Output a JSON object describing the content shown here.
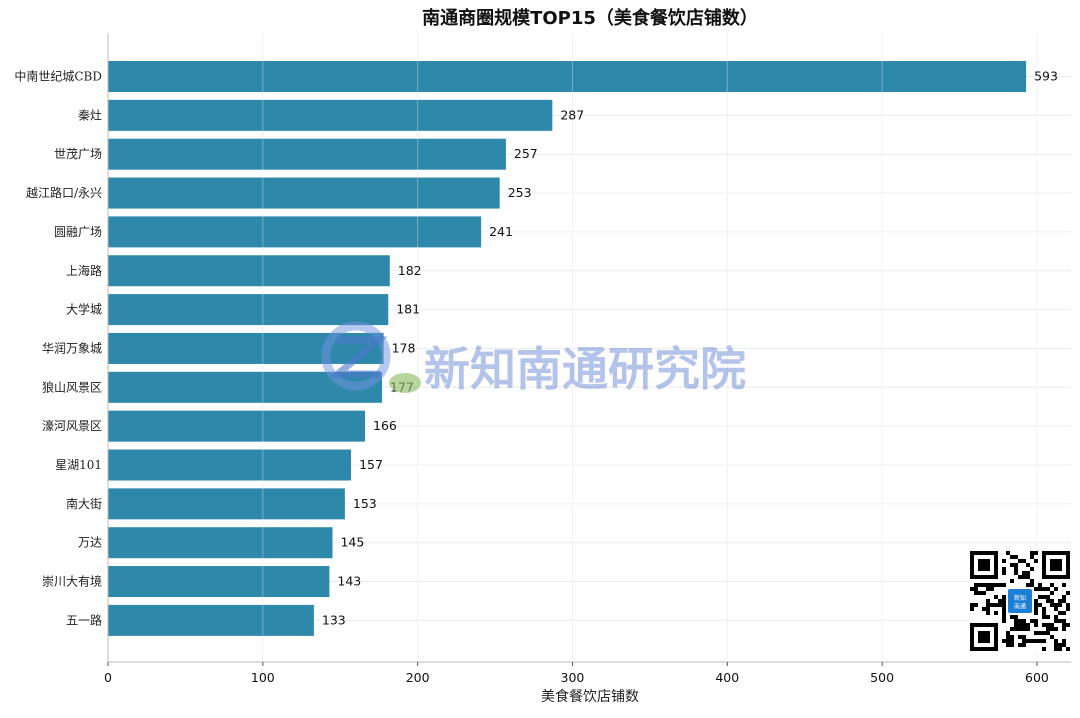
{
  "chart_data": {
    "type": "bar",
    "orientation": "horizontal",
    "title": "南通商圈规模TOP15（美食餐饮店铺数）",
    "xlabel": "美食餐饮店铺数",
    "ylabel": "",
    "xlim": [
      0,
      622
    ],
    "x_ticks": [
      0,
      100,
      200,
      300,
      400,
      500,
      600
    ],
    "grid": true,
    "bar_color": "#2e88aa",
    "categories": [
      "中南世纪城CBD",
      "秦灶",
      "世茂广场",
      "越江路口/永兴",
      "圆融广场",
      "上海路",
      "大学城",
      "华润万象城",
      "狼山风景区",
      "濠河风景区",
      "星湖101",
      "南大街",
      "万达",
      "崇川大有境",
      "五一路"
    ],
    "values": [
      593,
      287,
      257,
      253,
      241,
      182,
      181,
      178,
      177,
      166,
      157,
      153,
      145,
      143,
      133
    ]
  },
  "watermark": {
    "text": "新知南通研究院",
    "color": "#5b7fd0"
  },
  "qr_badge": {
    "text_line1": "新知",
    "text_line2": "南通",
    "icon": "qr-code-icon",
    "accent": "#1c7fd6"
  }
}
